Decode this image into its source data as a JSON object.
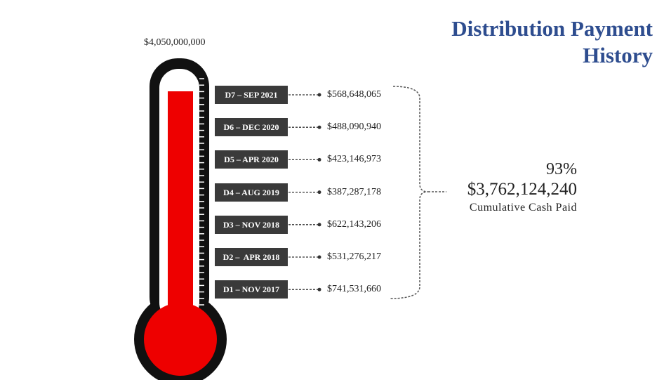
{
  "title": "Distribution Payment History",
  "goal": "$4,050,000,000",
  "distributions": [
    {
      "label": "D7 – SEP 2021",
      "amount": "$568,648,065"
    },
    {
      "label": "D6 – DEC 2020",
      "amount": "$488,090,940"
    },
    {
      "label": "D5 – APR 2020",
      "amount": "$423,146,973"
    },
    {
      "label": "D4 – AUG 2019",
      "amount": "$387,287,178"
    },
    {
      "label": "D3 – NOV 2018",
      "amount": "$622,143,206"
    },
    {
      "label": "D2 –  APR 2018",
      "amount": "$531,276,217"
    },
    {
      "label": "D1 – NOV 2017",
      "amount": "$741,531,660"
    }
  ],
  "summary": {
    "percent": "93%",
    "total": "$3,762,124,240",
    "caption": "Cumulative Cash Paid"
  }
}
